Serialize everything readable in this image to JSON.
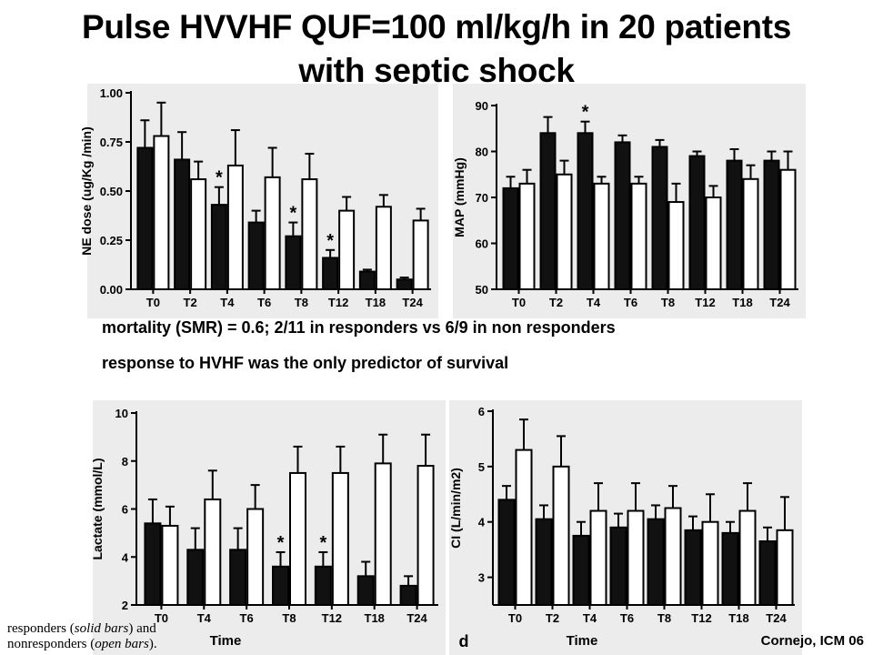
{
  "title": {
    "line1": "Pulse HVVHF QUF=100 ml/kg/h in 20 patients",
    "line2": "with septic shock"
  },
  "notes": {
    "mortality": "mortality (SMR) = 0.6; 2/11 in responders vs 6/9 in non responders",
    "predictor": "response to HVHF was the only predictor of survival"
  },
  "legend": {
    "line1_prefix": "responders (",
    "line1_italic": "solid bars",
    "line1_suffix": ") and",
    "line2_prefix": "nonresponders (",
    "line2_italic": "open bars",
    "line2_suffix": ")."
  },
  "credit": "Cornejo, ICM 06",
  "colors": {
    "responders": "#111111",
    "nonresponders": "#ffffff",
    "panel": "#ececec"
  },
  "chart_data": [
    {
      "id": "ne",
      "type": "bar",
      "ylabel": "NE dose (ug/Kg /min)",
      "xlabel": "",
      "panel_letter": "",
      "categories": [
        "T0",
        "T2",
        "T4",
        "T6",
        "T8",
        "T12",
        "T18",
        "T24"
      ],
      "yticks": [
        "0.00",
        "0.25",
        "0.50",
        "0.75",
        "1.00"
      ],
      "ylim": [
        0,
        1.0
      ],
      "series": [
        {
          "name": "responders",
          "values": [
            0.72,
            0.66,
            0.43,
            0.34,
            0.27,
            0.16,
            0.09,
            0.05
          ],
          "errors": [
            0.14,
            0.14,
            0.09,
            0.06,
            0.07,
            0.04,
            0.01,
            0.01
          ]
        },
        {
          "name": "nonresponders",
          "values": [
            0.78,
            0.56,
            0.63,
            0.57,
            0.56,
            0.4,
            0.42,
            0.35
          ],
          "errors": [
            0.17,
            0.09,
            0.18,
            0.15,
            0.13,
            0.07,
            0.06,
            0.06
          ]
        }
      ],
      "asterisks": [
        "",
        "",
        "*",
        "",
        "*",
        "*",
        "",
        ""
      ],
      "grid": false
    },
    {
      "id": "map",
      "type": "bar",
      "ylabel": "MAP (mmHg)",
      "xlabel": "",
      "panel_letter": "",
      "categories": [
        "T0",
        "T2",
        "T4",
        "T6",
        "T8",
        "T12",
        "T18",
        "T24"
      ],
      "yticks": [
        "50",
        "60",
        "70",
        "80",
        "90"
      ],
      "ylim": [
        50,
        90
      ],
      "series": [
        {
          "name": "responders",
          "values": [
            72,
            84,
            84,
            82,
            81,
            79,
            78,
            78
          ],
          "errors": [
            2.5,
            3.5,
            2.5,
            1.5,
            1.5,
            1.0,
            2.5,
            2.0
          ]
        },
        {
          "name": "nonresponders",
          "values": [
            73,
            75,
            73,
            73,
            69,
            70,
            74,
            76
          ],
          "errors": [
            3.0,
            3.0,
            1.5,
            1.5,
            4.0,
            2.5,
            3.0,
            4.0
          ]
        }
      ],
      "asterisks": [
        "",
        "",
        "*",
        "",
        "",
        "",
        "",
        ""
      ],
      "grid": false
    },
    {
      "id": "lactate",
      "type": "bar",
      "ylabel": "Lactate (mmol/L)",
      "xlabel": "Time",
      "panel_letter": "",
      "categories": [
        "T0",
        "T4",
        "T6",
        "T8",
        "T12",
        "T18",
        "T24"
      ],
      "yticks": [
        "2",
        "4",
        "6",
        "8",
        "10"
      ],
      "ylim": [
        2,
        10
      ],
      "series": [
        {
          "name": "responders",
          "values": [
            5.4,
            4.3,
            4.3,
            3.6,
            3.6,
            3.2,
            2.8
          ],
          "errors": [
            1.0,
            0.9,
            0.9,
            0.6,
            0.6,
            0.6,
            0.4
          ]
        },
        {
          "name": "nonresponders",
          "values": [
            5.3,
            6.4,
            6.0,
            7.5,
            7.5,
            7.9,
            7.8
          ],
          "errors": [
            0.8,
            1.2,
            1.0,
            1.1,
            1.1,
            1.2,
            1.3
          ]
        }
      ],
      "asterisks": [
        "",
        "",
        "",
        "*",
        "*",
        "",
        ""
      ],
      "grid": false
    },
    {
      "id": "ci",
      "type": "bar",
      "ylabel": "CI (L/min/m2)",
      "xlabel": "Time",
      "panel_letter": "d",
      "categories": [
        "T0",
        "T2",
        "T4",
        "T6",
        "T8",
        "T12",
        "T18",
        "T24"
      ],
      "yticks": [
        "3",
        "4",
        "5",
        "6"
      ],
      "ylim": [
        2.5,
        6
      ],
      "series": [
        {
          "name": "responders",
          "values": [
            4.4,
            4.05,
            3.75,
            3.9,
            4.05,
            3.85,
            3.8,
            3.65
          ],
          "errors": [
            0.25,
            0.25,
            0.25,
            0.25,
            0.25,
            0.25,
            0.2,
            0.25
          ]
        },
        {
          "name": "nonresponders",
          "values": [
            5.3,
            5.0,
            4.2,
            4.2,
            4.25,
            4.0,
            4.2,
            3.85
          ],
          "errors": [
            0.55,
            0.55,
            0.5,
            0.5,
            0.4,
            0.5,
            0.5,
            0.6
          ]
        }
      ],
      "asterisks": [
        "",
        "",
        "",
        "",
        "",
        "",
        "",
        ""
      ],
      "grid": false
    }
  ]
}
